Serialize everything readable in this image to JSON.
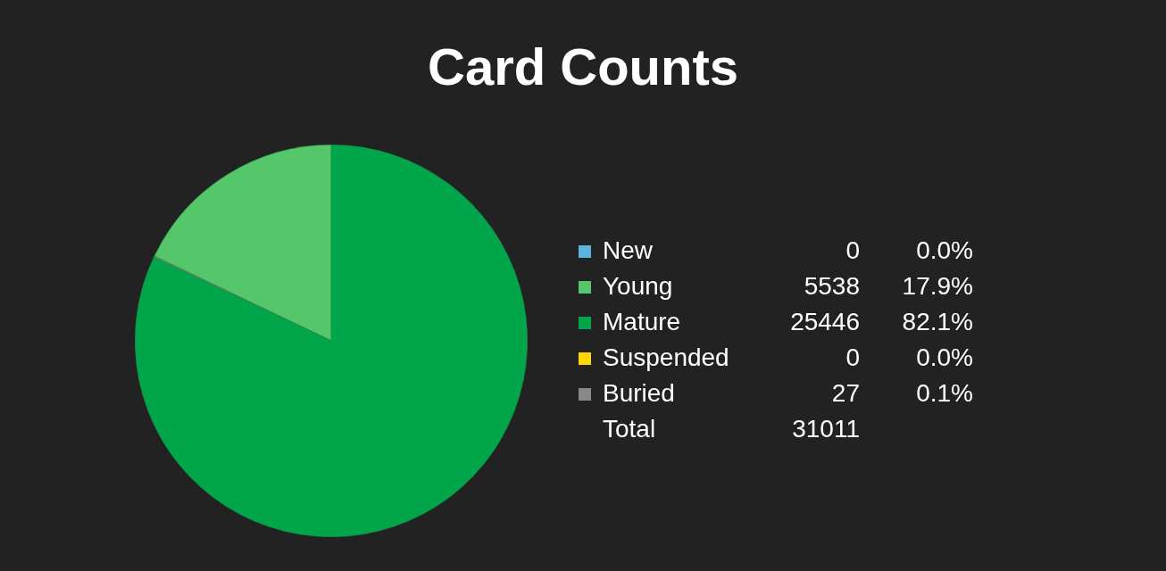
{
  "chart_data": {
    "type": "pie",
    "title": "Card Counts",
    "categories": [
      "New",
      "Young",
      "Mature",
      "Suspended",
      "Buried"
    ],
    "values": [
      0,
      17.9,
      82.1,
      0,
      0.1
    ],
    "colors": [
      "#5bb4dc",
      "#55c66a",
      "#00a649",
      "#ffd700",
      "#888888"
    ],
    "value_labels": [
      "0.0%",
      "17.9%",
      "82.1%",
      "0.0%",
      "0.1%"
    ],
    "annotations": [
      "0",
      "5538",
      "25446",
      "0",
      "27",
      "Total"
    ],
    "totals": [
      "31011"
    ],
    "legend": "right"
  }
}
